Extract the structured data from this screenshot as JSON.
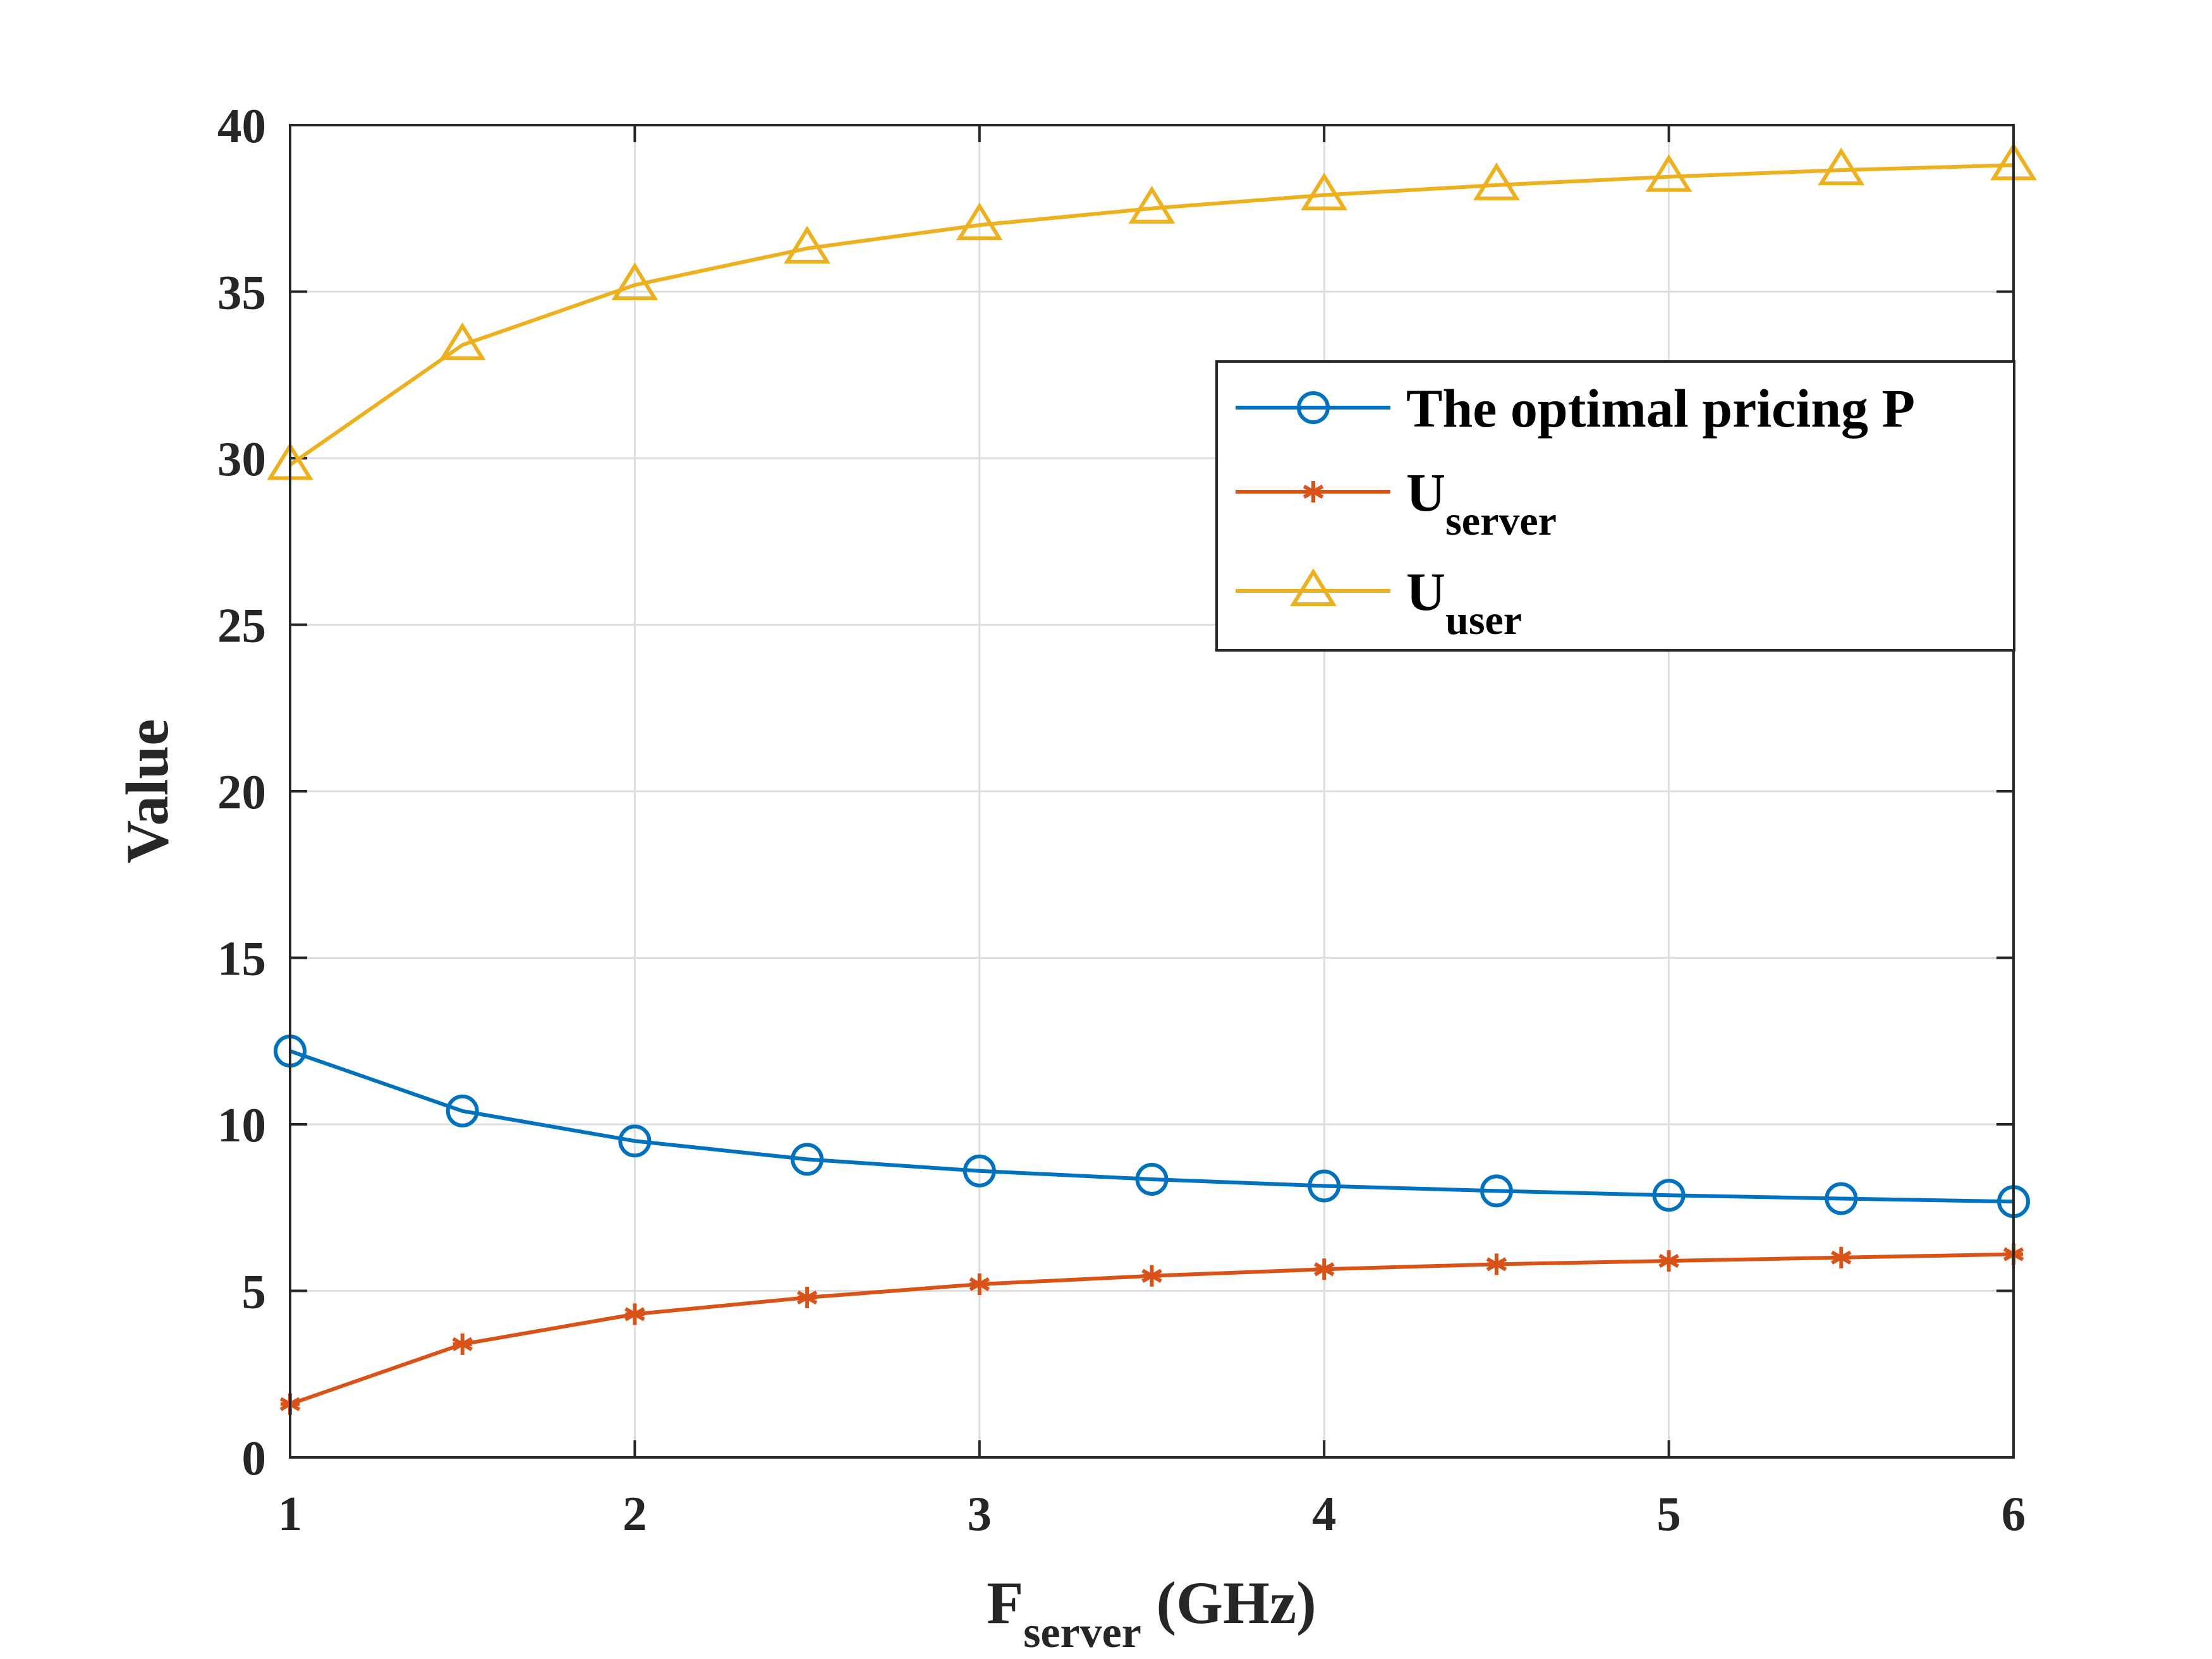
{
  "chart_data": {
    "type": "line",
    "x": [
      1,
      1.5,
      2,
      2.5,
      3,
      3.5,
      4,
      4.5,
      5,
      5.5,
      6
    ],
    "xlabel": {
      "main": "F",
      "sub": "server",
      "rest": " (GHz)"
    },
    "ylabel": "Value",
    "xlim": [
      1,
      6
    ],
    "ylim": [
      0,
      40
    ],
    "xticks": [
      "1",
      "2",
      "3",
      "4",
      "5",
      "6"
    ],
    "yticks": [
      "0",
      "5",
      "10",
      "15",
      "20",
      "25",
      "30",
      "35",
      "40"
    ],
    "grid": true,
    "legend_position": "upper-right",
    "series": [
      {
        "name": "The optimal pricing P",
        "name_main": "The optimal pricing P",
        "name_sub": "",
        "color": "#0072BD",
        "marker": "circle",
        "values": [
          12.2,
          10.4,
          9.5,
          8.95,
          8.6,
          8.35,
          8.15,
          8.0,
          7.87,
          7.77,
          7.68
        ]
      },
      {
        "name": "Userver",
        "name_main": "U",
        "name_sub": "server",
        "color": "#D95319",
        "marker": "asterisk",
        "values": [
          1.6,
          3.4,
          4.3,
          4.8,
          5.2,
          5.45,
          5.65,
          5.8,
          5.9,
          6.0,
          6.1
        ]
      },
      {
        "name": "Uuser",
        "name_main": "U",
        "name_sub": "user",
        "color": "#EDB120",
        "marker": "triangle",
        "values": [
          29.8,
          33.4,
          35.2,
          36.3,
          37.0,
          37.5,
          37.9,
          38.2,
          38.45,
          38.65,
          38.8
        ]
      }
    ]
  }
}
